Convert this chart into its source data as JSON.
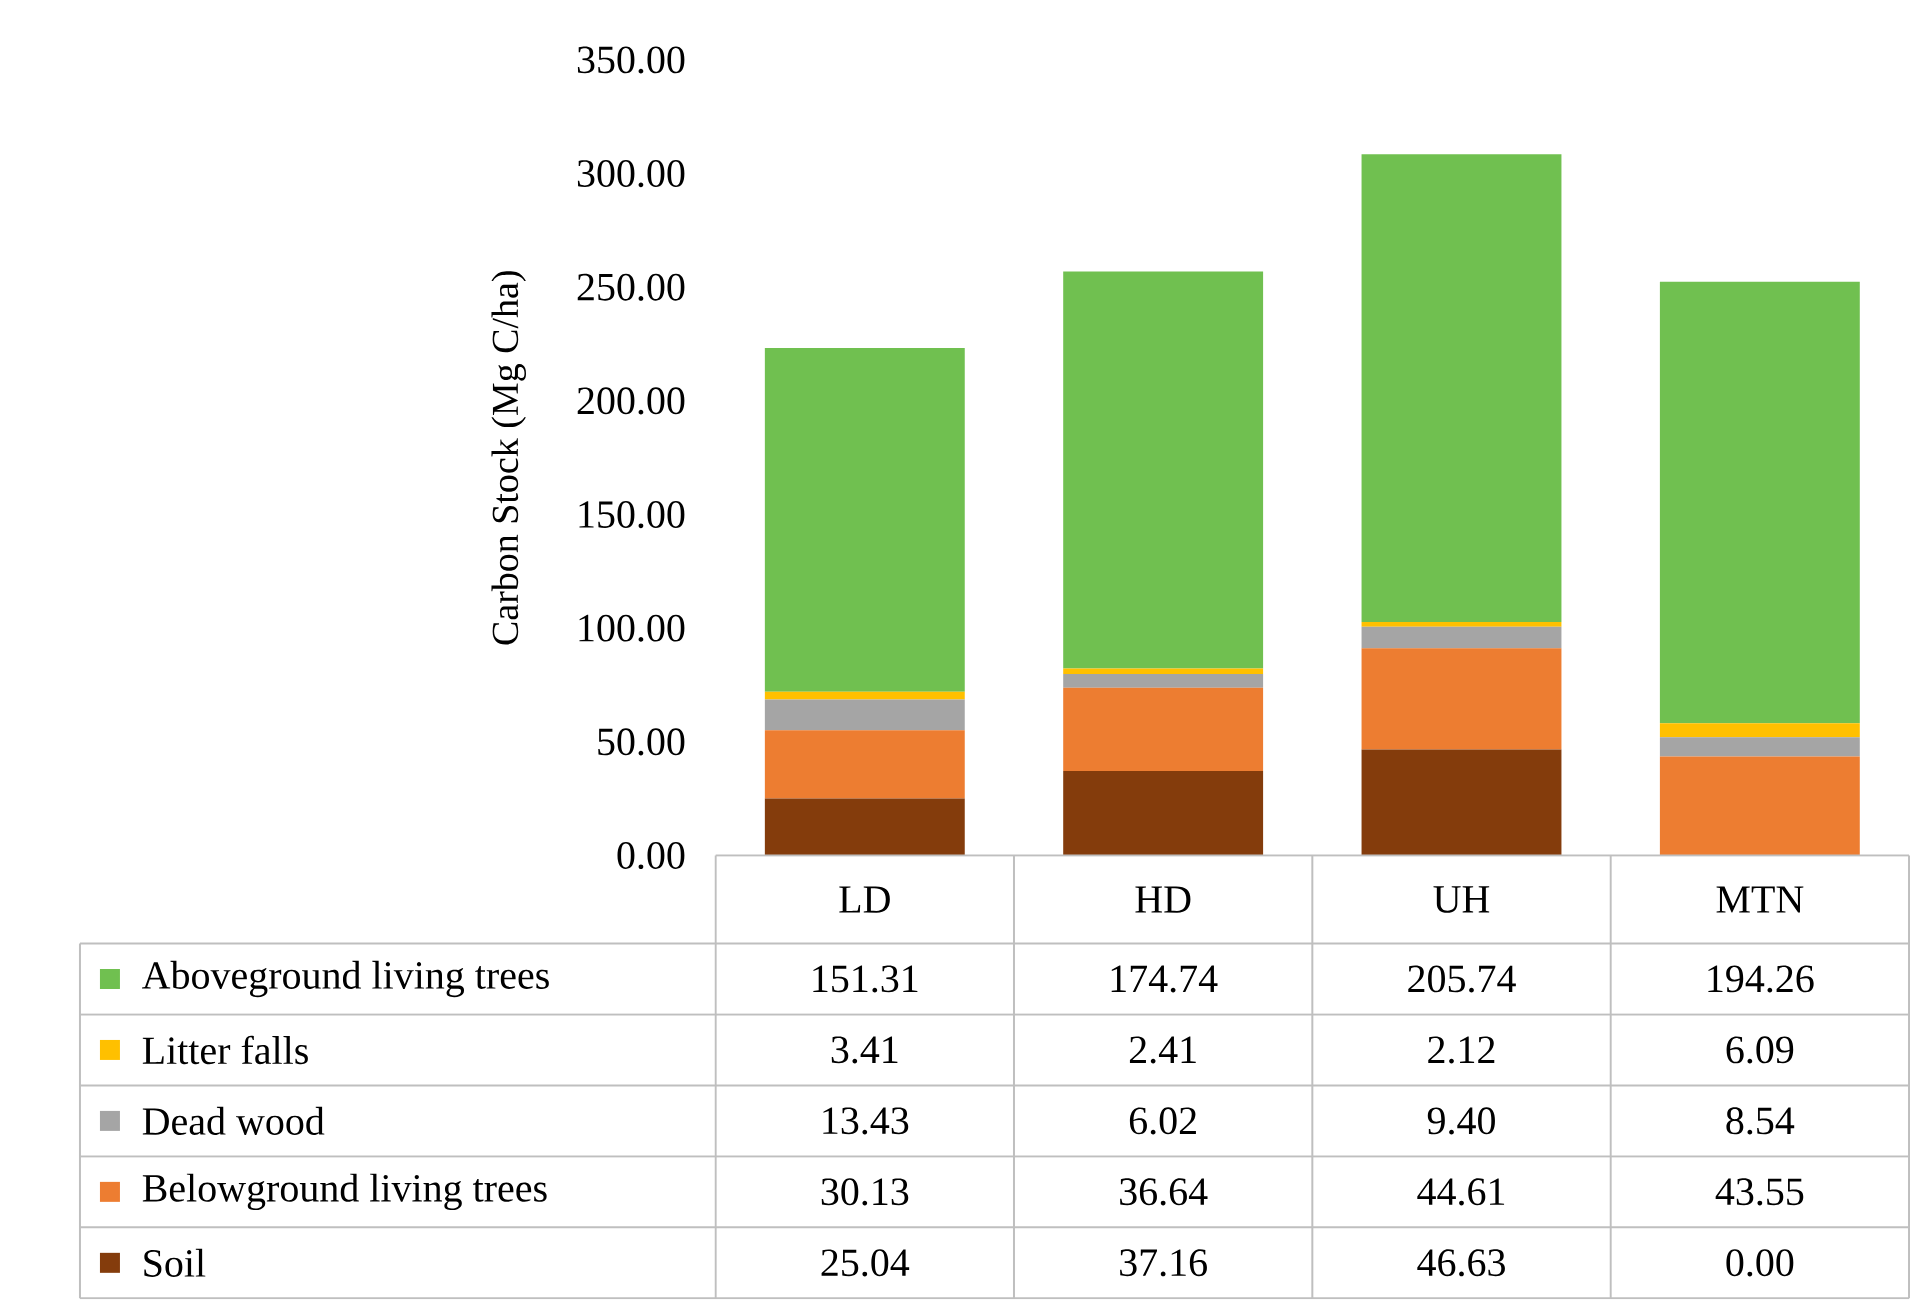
{
  "chart_data": {
    "type": "bar",
    "stacked": true,
    "ylabel": "Carbon Stock (Mg C/ha)",
    "categories": [
      "LD",
      "HD",
      "UH",
      "MTN"
    ],
    "ylim": [
      0,
      350
    ],
    "yticks": [
      {
        "value": 0,
        "label": "0.00"
      },
      {
        "value": 50,
        "label": "50.00"
      },
      {
        "value": 100,
        "label": "100.00"
      },
      {
        "value": 150,
        "label": "150.00"
      },
      {
        "value": 200,
        "label": "200.00"
      },
      {
        "value": 250,
        "label": "250.00"
      },
      {
        "value": 300,
        "label": "300.00"
      },
      {
        "value": 350,
        "label": "350.00"
      }
    ],
    "legend": "bottom",
    "series": [
      {
        "name": "Soil",
        "color": "#843c0c",
        "values": [
          25.04,
          37.16,
          46.63,
          0.0
        ],
        "value_labels": [
          "25.04",
          "37.16",
          "46.63",
          "0.00"
        ]
      },
      {
        "name": "Belowground living trees",
        "color": "#ed7d31",
        "values": [
          30.13,
          36.64,
          44.61,
          43.55
        ],
        "value_labels": [
          "30.13",
          "36.64",
          "44.61",
          "43.55"
        ]
      },
      {
        "name": "Dead wood",
        "color": "#a5a5a5",
        "values": [
          13.43,
          6.02,
          9.4,
          8.54
        ],
        "value_labels": [
          "13.43",
          "6.02",
          "9.40",
          "8.54"
        ]
      },
      {
        "name": "Litter falls",
        "color": "#ffc000",
        "values": [
          3.41,
          2.41,
          2.12,
          6.09
        ],
        "value_labels": [
          "3.41",
          "2.41",
          "2.12",
          "6.09"
        ]
      },
      {
        "name": "Aboveground living trees",
        "color": "#70c050",
        "values": [
          151.31,
          174.74,
          205.74,
          194.26
        ],
        "value_labels": [
          "151.31",
          "174.74",
          "205.74",
          "194.26"
        ]
      }
    ]
  }
}
